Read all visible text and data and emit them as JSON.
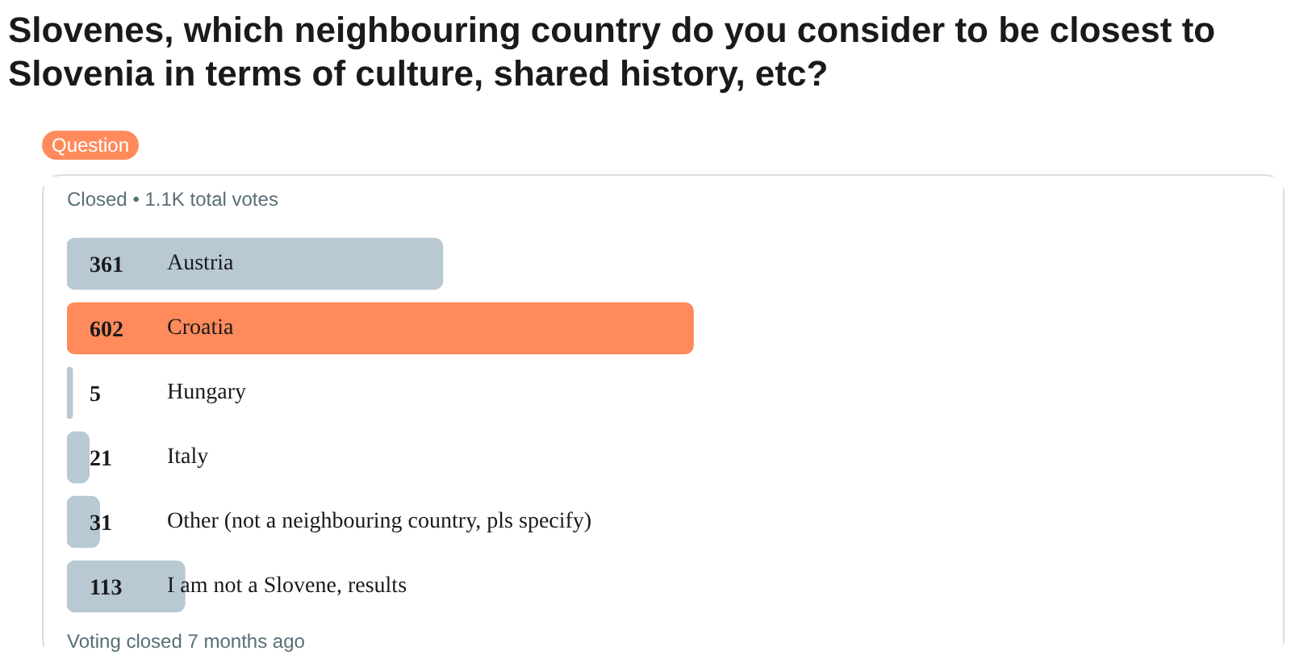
{
  "chart_data": {
    "type": "bar",
    "orientation": "horizontal",
    "title": "Slovenes, which neighbouring country do you consider to be closest to Slovenia in terms of culture, shared history, etc?",
    "categories": [
      "Austria",
      "Croatia",
      "Hungary",
      "Italy",
      "Other (not a neighbouring country, pls specify)",
      "I am not a Slovene, results"
    ],
    "values": [
      361,
      602,
      5,
      21,
      31,
      113
    ],
    "colors": [
      "#b8c9d4",
      "#ff8a5b",
      "#b8c9d4",
      "#b8c9d4",
      "#b8c9d4",
      "#b8c9d4"
    ],
    "data_labels": true,
    "annotations": [
      "Question",
      "Closed • 1.1K total votes",
      "Voting closed 7 months ago"
    ]
  }
}
